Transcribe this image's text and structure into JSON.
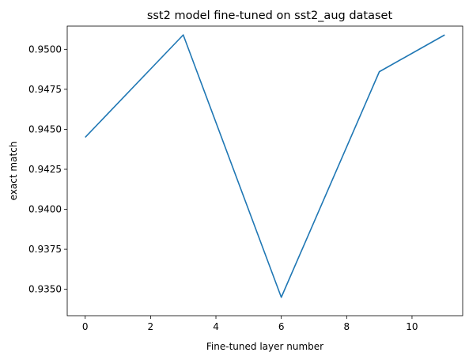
{
  "chart_data": {
    "type": "line",
    "title": "sst2 model fine-tuned on sst2_aug dataset",
    "xlabel": "Fine-tuned layer number",
    "ylabel": "exact match",
    "xlim": [
      -0.55,
      11.55
    ],
    "ylim": [
      0.93335,
      0.95145
    ],
    "xticks": [
      0,
      2,
      4,
      6,
      8,
      10
    ],
    "xtick_labels": [
      "0",
      "2",
      "4",
      "6",
      "8",
      "10"
    ],
    "yticks": [
      0.935,
      0.9375,
      0.94,
      0.9425,
      0.945,
      0.9475,
      0.95
    ],
    "ytick_labels": [
      "0.9350",
      "0.9375",
      "0.9400",
      "0.9425",
      "0.9450",
      "0.9475",
      "0.9500"
    ],
    "grid": false,
    "series": [
      {
        "color": "#1f77b4",
        "x": [
          0,
          3,
          6,
          9,
          11
        ],
        "y": [
          0.9445,
          0.9509,
          0.9345,
          0.9486,
          0.9509
        ]
      }
    ]
  }
}
